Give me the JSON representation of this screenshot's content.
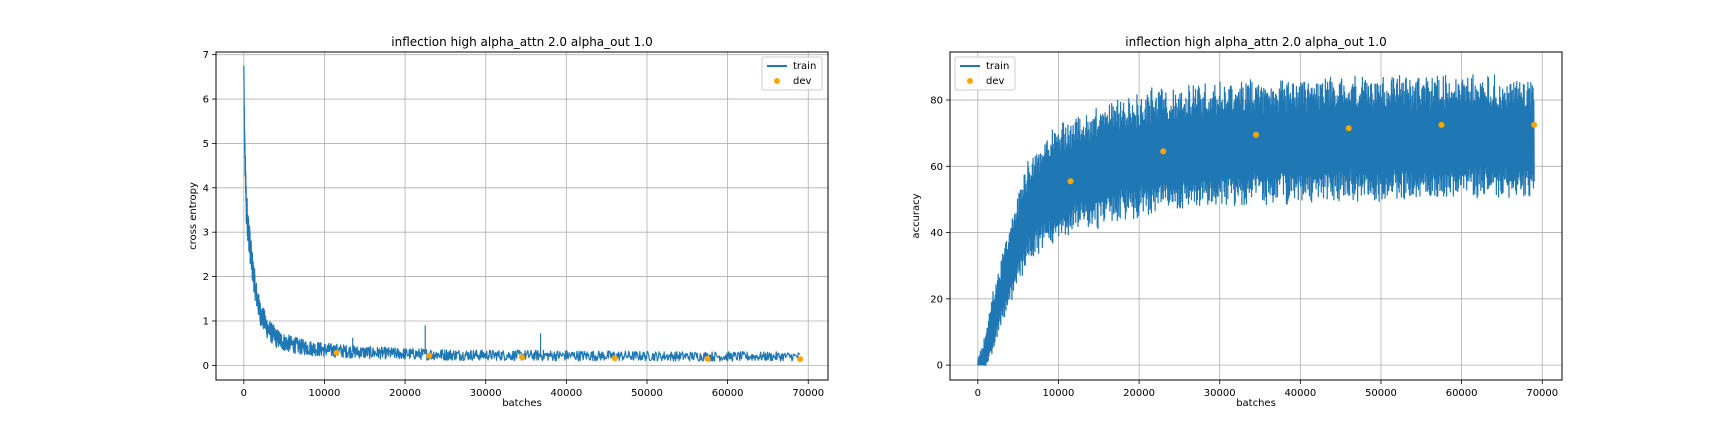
{
  "colors": {
    "train": "#1f77b4",
    "dev": "#ffa500",
    "grid": "#b0b0b0",
    "axis": "#000000"
  },
  "chart_data": [
    {
      "type": "line",
      "title": "inflection high alpha_attn 2.0 alpha_out 1.0",
      "xlabel": "batches",
      "ylabel": "cross entropy",
      "xlim": [
        -3450,
        72450
      ],
      "ylim": [
        -0.33,
        7.06
      ],
      "xticks": [
        0,
        10000,
        20000,
        30000,
        40000,
        50000,
        60000,
        70000
      ],
      "yticks": [
        0,
        1,
        2,
        3,
        4,
        5,
        6,
        7
      ],
      "grid": true,
      "legend": {
        "placement": "upper right",
        "entries": [
          "train",
          "dev"
        ]
      },
      "series": [
        {
          "name": "train",
          "kind": "noisy-line",
          "x": [
            0,
            100,
            300,
            600,
            1000,
            1500,
            2000,
            3000,
            4000,
            5000,
            7000,
            10000,
            15000,
            20000,
            25000,
            30000,
            40000,
            50000,
            60000,
            69000
          ],
          "center": [
            6.7,
            5.0,
            3.6,
            3.0,
            2.3,
            1.65,
            1.2,
            0.82,
            0.62,
            0.52,
            0.42,
            0.35,
            0.29,
            0.26,
            0.24,
            0.23,
            0.22,
            0.21,
            0.2,
            0.2
          ],
          "spread": [
            0.1,
            0.4,
            0.45,
            0.4,
            0.35,
            0.3,
            0.28,
            0.25,
            0.22,
            0.2,
            0.18,
            0.16,
            0.14,
            0.13,
            0.13,
            0.12,
            0.12,
            0.11,
            0.11,
            0.1
          ],
          "spikes": [
            {
              "x": 22500,
              "y": 0.9
            },
            {
              "x": 36800,
              "y": 0.72
            },
            {
              "x": 13500,
              "y": 0.62
            }
          ]
        },
        {
          "name": "dev",
          "kind": "scatter",
          "x": [
            11500,
            23000,
            34500,
            46000,
            57500,
            69000
          ],
          "y": [
            0.28,
            0.22,
            0.18,
            0.16,
            0.15,
            0.14
          ]
        }
      ]
    },
    {
      "type": "line",
      "title": "inflection high alpha_attn 2.0 alpha_out 1.0",
      "xlabel": "batches",
      "ylabel": "accuracy",
      "xlim": [
        -3450,
        72450
      ],
      "ylim": [
        -4.5,
        94.5
      ],
      "xticks": [
        0,
        10000,
        20000,
        30000,
        40000,
        50000,
        60000,
        70000
      ],
      "yticks": [
        0,
        20,
        40,
        60,
        80
      ],
      "grid": true,
      "legend": {
        "placement": "upper left",
        "entries": [
          "train",
          "dev"
        ]
      },
      "series": [
        {
          "name": "train",
          "kind": "band",
          "x": [
            0,
            500,
            1000,
            1500,
            2000,
            3000,
            4000,
            5000,
            6000,
            7000,
            8000,
            10000,
            12000,
            15000,
            18000,
            20000,
            22000,
            25000,
            30000,
            35000,
            40000,
            45000,
            50000,
            55000,
            60000,
            65000,
            69000
          ],
          "low": [
            0,
            0,
            0,
            3,
            6,
            14,
            20,
            26,
            31,
            34,
            36,
            38,
            41,
            43,
            45,
            46,
            47,
            48,
            49,
            50,
            50,
            51,
            51,
            51,
            52,
            52,
            52
          ],
          "high": [
            0,
            3,
            8,
            15,
            22,
            31,
            41,
            50,
            58,
            63,
            66,
            70,
            73,
            76,
            78,
            80,
            81,
            82,
            83,
            84,
            84,
            85,
            85,
            85,
            85,
            85,
            84
          ]
        },
        {
          "name": "dev",
          "kind": "scatter",
          "x": [
            11500,
            23000,
            34500,
            46000,
            57500,
            69000
          ],
          "y": [
            55.5,
            64.5,
            69.5,
            71.5,
            72.5,
            72.5
          ]
        }
      ]
    }
  ]
}
